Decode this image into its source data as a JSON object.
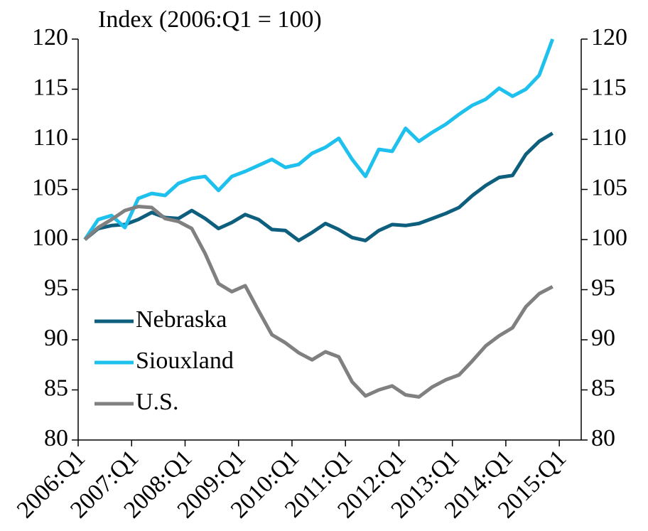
{
  "chart_data": {
    "type": "line",
    "title": "Index (2006:Q1 = 100)",
    "x": [
      2006.125,
      2006.375,
      2006.625,
      2006.875,
      2007.125,
      2007.375,
      2007.625,
      2007.875,
      2008.125,
      2008.375,
      2008.625,
      2008.875,
      2009.125,
      2009.375,
      2009.625,
      2009.875,
      2010.125,
      2010.375,
      2010.625,
      2010.875,
      2011.125,
      2011.375,
      2011.625,
      2011.875,
      2012.125,
      2012.375,
      2012.625,
      2012.875,
      2013.125,
      2013.375,
      2013.625,
      2013.875,
      2014.125,
      2014.375,
      2014.625,
      2014.875
    ],
    "series": [
      {
        "name": "Nebraska",
        "color": "#0e5f7e",
        "values": [
          100,
          101.1,
          101.4,
          101.5,
          102,
          102.7,
          102.2,
          102.1,
          102.9,
          102.1,
          101.1,
          101.7,
          102.5,
          102,
          101,
          100.9,
          99.9,
          100.7,
          101.6,
          101,
          100.2,
          99.9,
          100.9,
          101.5,
          101.4,
          101.6,
          102.1,
          102.6,
          103.2,
          104.4,
          105.4,
          106.2,
          106.4,
          108.5,
          109.8,
          110.6
        ]
      },
      {
        "name": "Siouxland",
        "color": "#1ec0ee",
        "values": [
          100,
          102,
          102.4,
          101.2,
          104.1,
          104.6,
          104.4,
          105.6,
          106.1,
          106.3,
          104.9,
          106.3,
          106.8,
          107.4,
          108,
          107.2,
          107.5,
          108.6,
          109.2,
          110.1,
          108,
          106.3,
          109,
          108.8,
          111.1,
          109.8,
          110.7,
          111.5,
          112.5,
          113.4,
          114,
          115.1,
          114.3,
          115,
          116.4,
          120
        ]
      },
      {
        "name": "U.S.",
        "color": "#808080",
        "values": [
          100,
          101.2,
          102,
          102.9,
          103.3,
          103.2,
          102.1,
          101.8,
          101.1,
          98.6,
          95.6,
          94.8,
          95.4,
          92.9,
          90.5,
          89.7,
          88.7,
          88,
          88.8,
          88.3,
          85.8,
          84.4,
          85,
          85.4,
          84.5,
          84.3,
          85.3,
          86,
          86.5,
          87.9,
          89.4,
          90.4,
          91.2,
          93.3,
          94.6,
          95.3
        ]
      }
    ],
    "xlim": [
      2006,
      2015.41
    ],
    "xticks": [
      {
        "value": 2006,
        "label": "2006:Q1"
      },
      {
        "value": 2007,
        "label": "2007:Q1"
      },
      {
        "value": 2008,
        "label": "2008:Q1"
      },
      {
        "value": 2009,
        "label": "2009:Q1"
      },
      {
        "value": 2010,
        "label": "2010:Q1"
      },
      {
        "value": 2011,
        "label": "2011:Q1"
      },
      {
        "value": 2012,
        "label": "2012:Q1"
      },
      {
        "value": 2013,
        "label": "2013:Q1"
      },
      {
        "value": 2014,
        "label": "2014:Q1"
      },
      {
        "value": 2015,
        "label": "2015:Q1"
      }
    ],
    "ylim": [
      80,
      120
    ],
    "yticks": [
      80,
      85,
      90,
      95,
      100,
      105,
      110,
      115,
      120
    ],
    "y2lim": [
      80,
      120
    ],
    "y2ticks": [
      80,
      85,
      90,
      95,
      100,
      105,
      110,
      115,
      120
    ],
    "legend": "lower left",
    "grid": false
  }
}
